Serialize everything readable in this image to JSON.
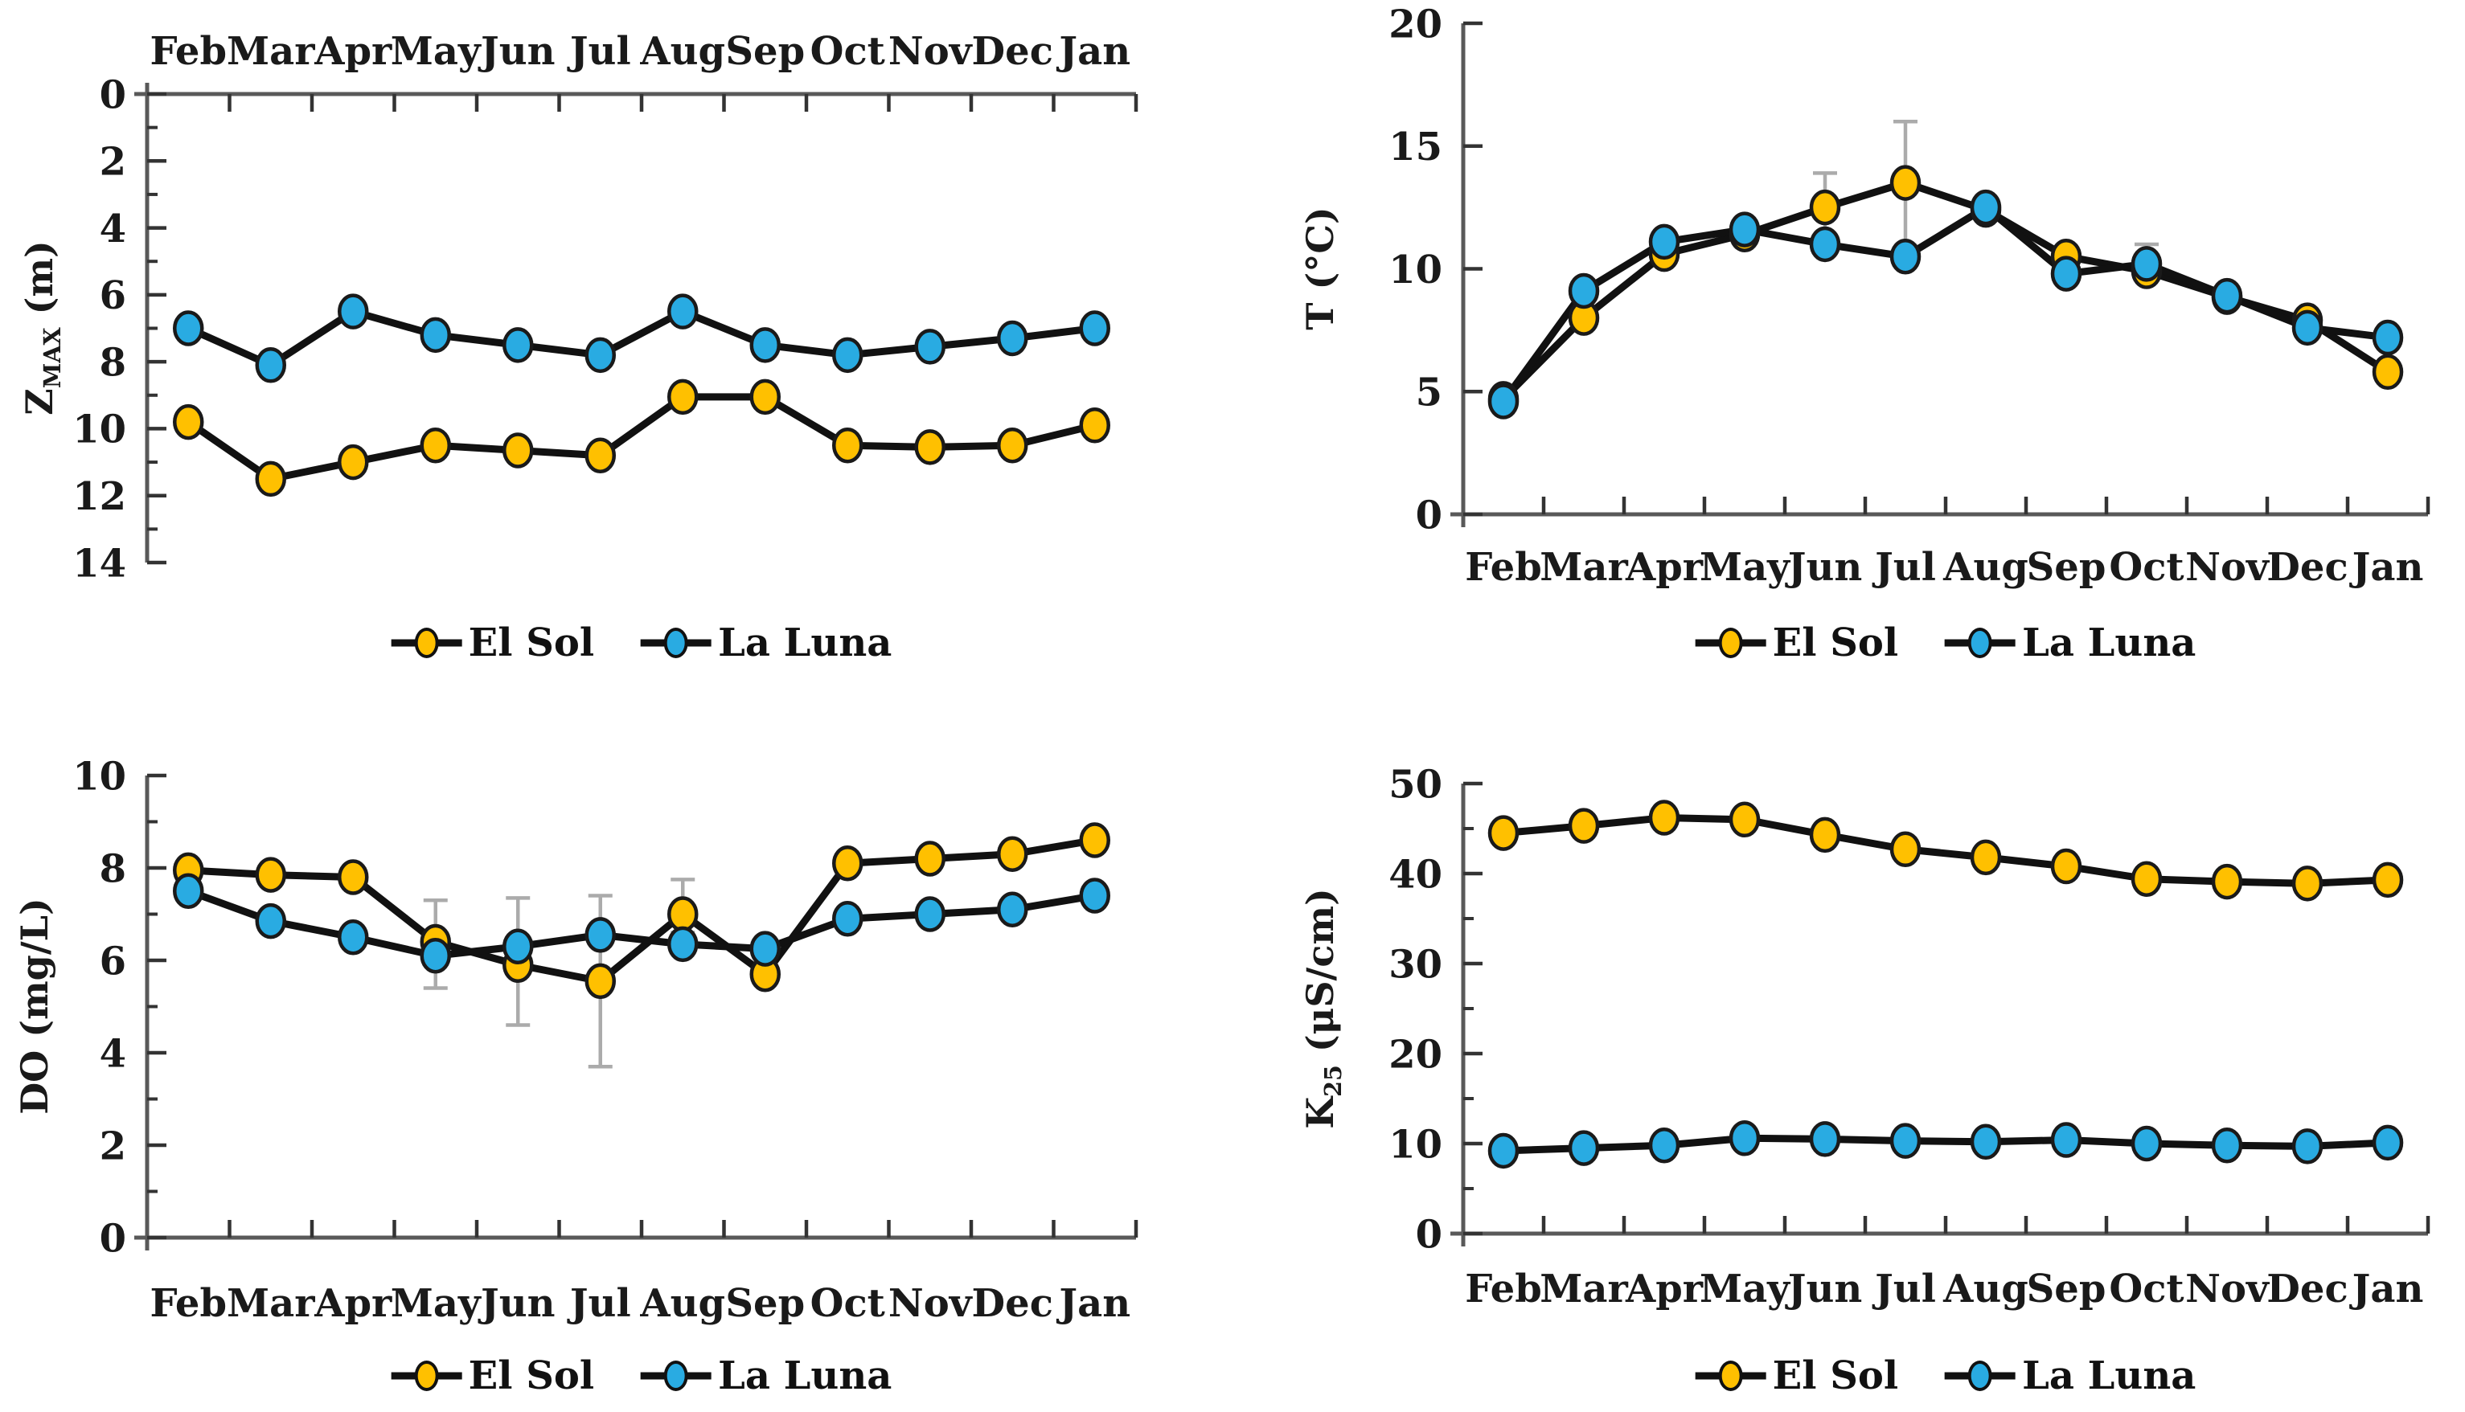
{
  "page": {
    "background": "#ffffff",
    "description": "Four monthly line charts comparing lakes El Sol and La Luna"
  },
  "colors": {
    "el_sol": "#FFC000",
    "la_luna": "#29ABE2",
    "series_line": "#111111",
    "marker_stroke": "#1a1a1a",
    "error_bar": "#ABABAB",
    "axis_line": "#595959",
    "tick": "#333333",
    "text": "#1a1a1a"
  },
  "months": [
    "Feb",
    "Mar",
    "Apr",
    "May",
    "Jun",
    "Jul",
    "Aug",
    "Sep",
    "Oct",
    "Nov",
    "Dec",
    "Jan"
  ],
  "chart_data": [
    {
      "id": "zmax",
      "type": "line",
      "title": "",
      "ylabel": {
        "pre": "Z",
        "sub": "MAX",
        "post": " (m)"
      },
      "ylabel_text": "ZMAX (m)",
      "x_axis_position": "top",
      "y_inverted": true,
      "ylim": [
        0,
        14
      ],
      "y_ticks": [
        0,
        2,
        4,
        6,
        8,
        10,
        12,
        14
      ],
      "y_minor_step": 1,
      "grid": false,
      "legend_position": "bottom",
      "categories": [
        "Feb",
        "Mar",
        "Apr",
        "May",
        "Jun",
        "Jul",
        "Aug",
        "Sep",
        "Oct",
        "Nov",
        "Dec",
        "Jan"
      ],
      "series": [
        {
          "name": "El Sol",
          "color": "#FFC000",
          "values": [
            9.8,
            11.5,
            11.0,
            10.5,
            10.65,
            10.8,
            9.05,
            9.05,
            10.5,
            10.55,
            10.5,
            9.9
          ]
        },
        {
          "name": "La Luna",
          "color": "#29ABE2",
          "values": [
            7.0,
            8.1,
            6.5,
            7.2,
            7.5,
            7.8,
            6.5,
            7.5,
            7.8,
            7.55,
            7.3,
            7.0
          ]
        }
      ]
    },
    {
      "id": "temperature",
      "type": "line",
      "title": "",
      "ylabel": {
        "pre": "T",
        "sub": "",
        "post": " (°C)"
      },
      "ylabel_text": "T (°C)",
      "x_axis_position": "bottom",
      "y_inverted": false,
      "ylim": [
        0,
        20
      ],
      "y_ticks": [
        0,
        5,
        10,
        15,
        20
      ],
      "y_minor_step": 0,
      "grid": false,
      "legend_position": "bottom",
      "categories": [
        "Feb",
        "Mar",
        "Apr",
        "May",
        "Jun",
        "Jul",
        "Aug",
        "Sep",
        "Oct",
        "Nov",
        "Dec",
        "Jan"
      ],
      "series": [
        {
          "name": "El Sol",
          "color": "#FFC000",
          "values": [
            4.7,
            8.0,
            10.6,
            11.4,
            12.5,
            13.5,
            12.4,
            10.5,
            9.9,
            8.85,
            7.9,
            5.8
          ],
          "err_plus": [
            0,
            0,
            0,
            0,
            1.4,
            2.5,
            0,
            0.4,
            0,
            0,
            0,
            0
          ],
          "err_minus": [
            0,
            0,
            0,
            0,
            1.4,
            3.1,
            0,
            0,
            0,
            0,
            0,
            0
          ]
        },
        {
          "name": "La Luna",
          "color": "#29ABE2",
          "values": [
            4.6,
            9.1,
            11.1,
            11.6,
            11.0,
            10.5,
            12.5,
            9.8,
            10.2,
            8.9,
            7.6,
            7.2
          ],
          "err_plus": [
            0,
            0,
            0,
            0,
            0,
            0,
            0,
            0,
            0.8,
            0,
            0,
            0
          ],
          "err_minus": [
            0,
            0,
            0,
            0,
            0,
            0,
            0,
            0,
            0.3,
            0,
            0,
            0
          ]
        }
      ]
    },
    {
      "id": "dissolved_oxygen",
      "type": "line",
      "title": "",
      "ylabel": {
        "pre": "DO",
        "sub": "",
        "post": " (mg/L)"
      },
      "ylabel_text": "DO (mg/L)",
      "x_axis_position": "bottom",
      "y_inverted": false,
      "ylim": [
        0,
        10
      ],
      "y_ticks": [
        0,
        2,
        4,
        6,
        8,
        10
      ],
      "y_minor_step": 1,
      "grid": false,
      "legend_position": "bottom",
      "categories": [
        "Feb",
        "Mar",
        "Apr",
        "May",
        "Jun",
        "Jul",
        "Aug",
        "Sep",
        "Oct",
        "Nov",
        "Dec",
        "Jan"
      ],
      "series": [
        {
          "name": "El Sol",
          "color": "#FFC000",
          "values": [
            7.95,
            7.85,
            7.8,
            6.4,
            5.9,
            5.55,
            7.0,
            5.7,
            8.1,
            8.2,
            8.3,
            8.6
          ],
          "err_plus": [
            0,
            0,
            0,
            0.9,
            0,
            1.85,
            0.75,
            0,
            0,
            0,
            0,
            0
          ],
          "err_minus": [
            0,
            0,
            0,
            1.0,
            0,
            1.85,
            0.4,
            0,
            0,
            0,
            0,
            0
          ]
        },
        {
          "name": "La Luna",
          "color": "#29ABE2",
          "values": [
            7.5,
            6.85,
            6.5,
            6.1,
            6.3,
            6.55,
            6.35,
            6.25,
            6.9,
            7.0,
            7.1,
            7.4
          ],
          "err_plus": [
            0,
            0,
            0,
            0,
            1.05,
            0,
            0,
            0,
            0,
            0,
            0,
            0
          ],
          "err_minus": [
            0,
            0,
            0,
            0,
            1.7,
            0,
            0,
            0,
            0,
            0,
            0,
            0
          ]
        }
      ]
    },
    {
      "id": "k25_conductivity",
      "type": "line",
      "title": "",
      "ylabel": {
        "pre": "K",
        "sub": "25",
        "post": " (μS/cm)"
      },
      "ylabel_text": "K25 (μS/cm)",
      "x_axis_position": "bottom",
      "y_inverted": false,
      "ylim": [
        0,
        50
      ],
      "y_ticks": [
        0,
        10,
        20,
        30,
        40,
        50
      ],
      "y_minor_step": 5,
      "grid": false,
      "legend_position": "bottom",
      "categories": [
        "Feb",
        "Mar",
        "Apr",
        "May",
        "Jun",
        "Jul",
        "Aug",
        "Sep",
        "Oct",
        "Nov",
        "Dec",
        "Jan"
      ],
      "series": [
        {
          "name": "El Sol",
          "color": "#FFC000",
          "values": [
            44.5,
            45.3,
            46.2,
            46.0,
            44.3,
            42.7,
            41.8,
            40.8,
            39.4,
            39.1,
            38.9,
            39.3
          ]
        },
        {
          "name": "La Luna",
          "color": "#29ABE2",
          "values": [
            9.2,
            9.5,
            9.8,
            10.6,
            10.5,
            10.3,
            10.2,
            10.4,
            10.0,
            9.8,
            9.7,
            10.1
          ]
        }
      ]
    }
  ]
}
